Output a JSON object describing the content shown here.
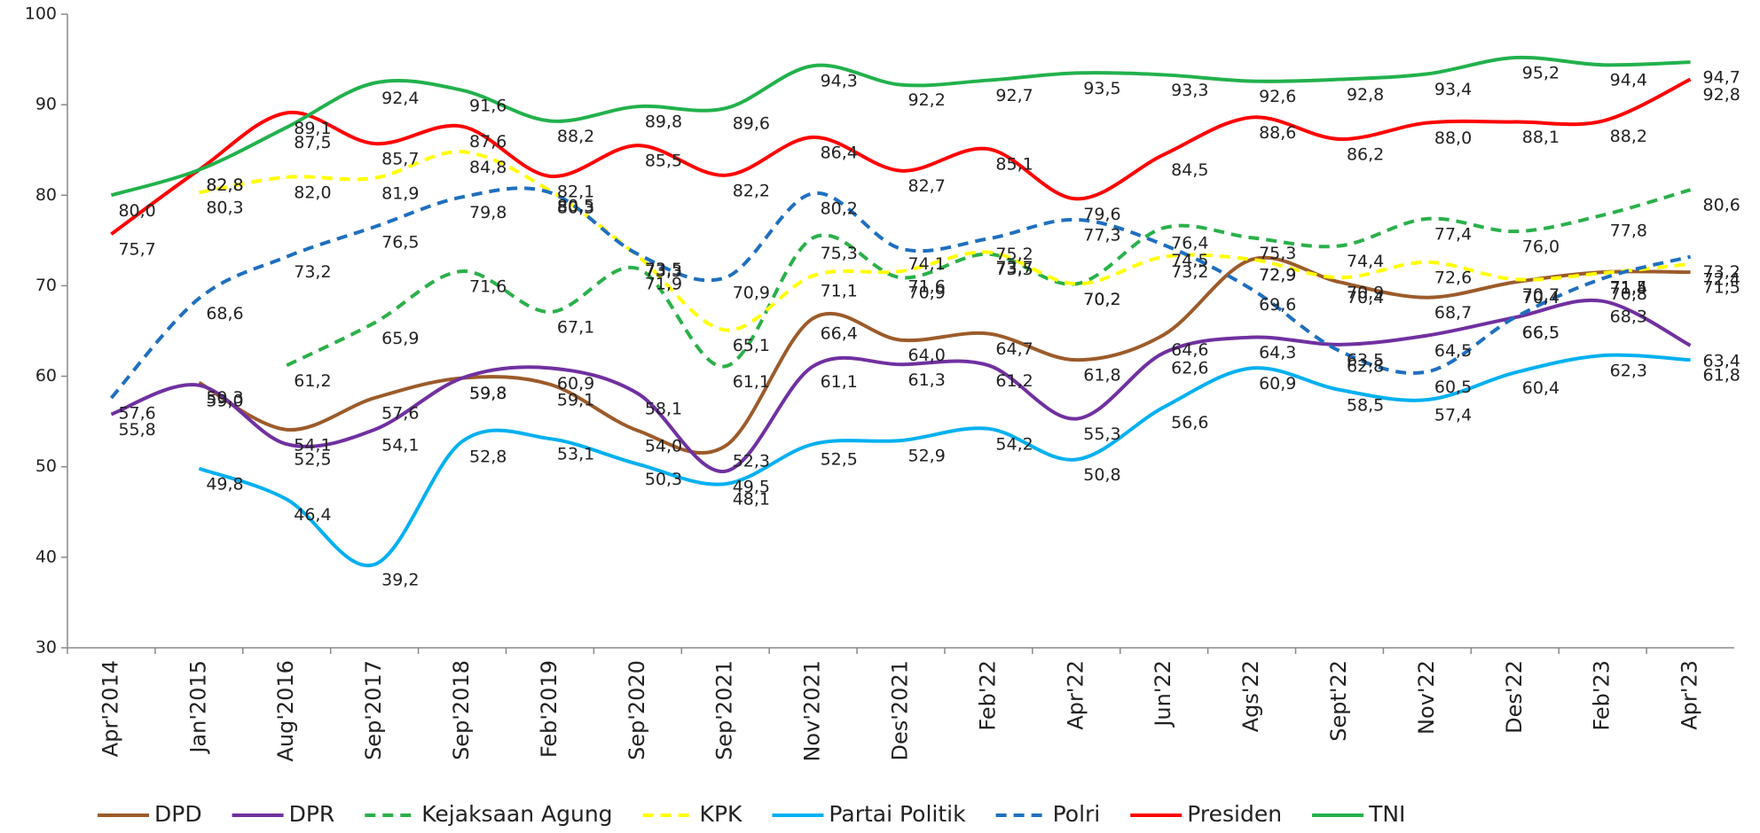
{
  "chart_data": {
    "type": "line",
    "categories": [
      "Apr'2014",
      "Jan'2015",
      "Aug'2016",
      "Sep'2017",
      "Sep'2018",
      "Feb'2019",
      "Sep'2020",
      "Sep'2021",
      "Nov'2021",
      "Des'2021",
      "Feb'22",
      "Apr'22",
      "Jun'22",
      "Ags'22",
      "Sept'22",
      "Nov'22",
      "Des'22",
      "Feb'23",
      "Apr'23"
    ],
    "ylim": [
      30,
      100
    ],
    "yticks": [
      30,
      40,
      50,
      60,
      70,
      80,
      90,
      100
    ],
    "smooth": true,
    "legend": "bottom",
    "series": [
      {
        "name": "DPD",
        "color": "#9c5b2a",
        "dashed": false,
        "values": [
          null,
          59.3,
          54.1,
          57.6,
          59.8,
          59.1,
          54.0,
          52.3,
          66.4,
          64.0,
          64.7,
          61.8,
          64.6,
          72.9,
          70.4,
          68.7,
          70.4,
          71.5,
          71.5
        ],
        "value_labels": [
          null,
          "59,3",
          "54,1",
          "57,6",
          "59,8",
          "59,1",
          "54,0",
          "52,3",
          "66,4",
          "64,0",
          "64,7",
          "61,8",
          "64,6",
          "72,9",
          "70,4",
          "68,7",
          "70,4",
          "71,5",
          "71,5"
        ]
      },
      {
        "name": "DPR",
        "color": "#7030a0",
        "dashed": false,
        "values": [
          55.8,
          59.0,
          52.5,
          54.1,
          59.8,
          60.9,
          58.1,
          49.5,
          61.1,
          61.3,
          61.2,
          55.3,
          62.6,
          64.3,
          63.5,
          64.5,
          66.5,
          68.3,
          63.4
        ],
        "value_labels": [
          "55,8",
          "59,0",
          "52,5",
          "54,1",
          "59,8",
          "60,9",
          "58,1",
          "49,5",
          "61,1",
          "61,3",
          "61,2",
          "55,3",
          "62,6",
          "64,3",
          "63,5",
          "64,5",
          "66,5",
          "68,3",
          "63,4"
        ]
      },
      {
        "name": "Kejaksaan Agung",
        "color": "#2ab04a",
        "dashed": true,
        "values": [
          null,
          null,
          61.2,
          65.9,
          71.6,
          67.1,
          71.9,
          61.1,
          75.3,
          70.9,
          73.5,
          70.2,
          76.4,
          75.3,
          74.4,
          77.4,
          76.0,
          77.8,
          80.6
        ],
        "value_labels": [
          null,
          null,
          "61,2",
          "65,9",
          "71,6",
          "67,1",
          "71,9",
          "61,1",
          "75,3",
          "70,9",
          "73,5",
          "70,2",
          "76,4",
          "75,3",
          "74,4",
          "77,4",
          "76,0",
          "77,8",
          "80,6"
        ]
      },
      {
        "name": "KPK",
        "color": "#ffff00",
        "dashed": true,
        "values": [
          null,
          80.3,
          82.0,
          81.9,
          84.8,
          80.5,
          73.3,
          65.1,
          71.1,
          71.6,
          73.7,
          70.2,
          73.2,
          72.9,
          70.9,
          72.6,
          70.7,
          71.4,
          72.4
        ],
        "value_labels": [
          null,
          "80,3",
          "82,0",
          "81,9",
          "84,8",
          "80,5",
          "73,3",
          "65,1",
          "71,1",
          "71,6",
          "73,7",
          "70,2",
          "73,2",
          "72,9",
          "70,9",
          "72,6",
          "70,7",
          "71,4",
          "72,4"
        ]
      },
      {
        "name": "Partai Politik",
        "color": "#00b0f0",
        "dashed": false,
        "values": [
          null,
          49.8,
          46.4,
          39.2,
          52.8,
          53.1,
          50.3,
          48.1,
          52.5,
          52.9,
          54.2,
          50.8,
          56.6,
          60.9,
          58.5,
          57.4,
          60.4,
          62.3,
          61.8
        ],
        "value_labels": [
          null,
          "49,8",
          "46,4",
          "39,2",
          "52,8",
          "53,1",
          "50,3",
          "48,1",
          "52,5",
          "52,9",
          "54,2",
          "50,8",
          "56,6",
          "60,9",
          "58,5",
          "57,4",
          "60,4",
          "62,3",
          "61,8"
        ]
      },
      {
        "name": "Polri",
        "color": "#1f6fbf",
        "dashed": true,
        "values": [
          57.6,
          68.6,
          73.2,
          76.5,
          79.8,
          80.3,
          73.5,
          70.9,
          80.2,
          74.1,
          75.2,
          77.3,
          74.5,
          69.6,
          62.8,
          60.5,
          66.5,
          70.8,
          73.2
        ],
        "value_labels": [
          "57,6",
          "68,6",
          "73,2",
          "76,5",
          "79,8",
          "80,3",
          "73,5",
          "70,9",
          "80,2",
          "74,1",
          "75,2",
          "77,3",
          "74,5",
          "69,6",
          "62,8",
          "60,5",
          "66,5",
          "70,8",
          "73,2"
        ]
      },
      {
        "name": "Presiden",
        "color": "#ff0000",
        "dashed": false,
        "values": [
          75.7,
          82.8,
          89.1,
          85.7,
          87.6,
          82.1,
          85.5,
          82.2,
          86.4,
          82.7,
          85.1,
          79.6,
          84.5,
          88.6,
          86.2,
          88.0,
          88.1,
          88.2,
          92.8
        ],
        "value_labels": [
          "75,7",
          "82,8",
          "89,1",
          "85,7",
          "87,6",
          "82,1",
          "85,5",
          "82,2",
          "86,4",
          "82,7",
          "85,1",
          "79,6",
          "84,5",
          "88,6",
          "86,2",
          "88,0",
          "88,1",
          "88,2",
          "92,8"
        ]
      },
      {
        "name": "TNI",
        "color": "#22b14c",
        "dashed": false,
        "values": [
          80.0,
          82.8,
          87.5,
          92.4,
          91.6,
          88.2,
          89.8,
          89.6,
          94.3,
          92.2,
          92.7,
          93.5,
          93.3,
          92.6,
          92.8,
          93.4,
          95.2,
          94.4,
          94.7
        ],
        "value_labels": [
          "80,0",
          "82,8",
          "87,5",
          "92,4",
          "91,6",
          "88,2",
          "89,8",
          "89,6",
          "94,3",
          "92,2",
          "92,7",
          "93,5",
          "93,3",
          "92,6",
          "92,8",
          "93,4",
          "95,2",
          "94,4",
          "94,7"
        ]
      }
    ]
  }
}
